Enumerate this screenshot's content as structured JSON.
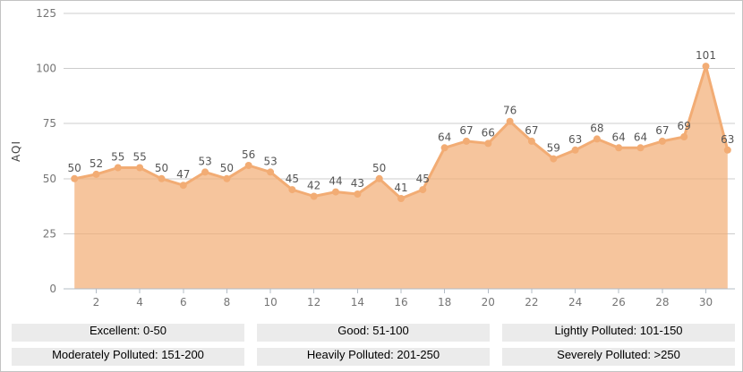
{
  "chart_data": {
    "type": "area",
    "title": "",
    "xlabel": "",
    "ylabel": "AQI",
    "x": [
      1,
      2,
      3,
      4,
      5,
      6,
      7,
      8,
      9,
      10,
      11,
      12,
      13,
      14,
      15,
      16,
      17,
      18,
      19,
      20,
      21,
      22,
      23,
      24,
      25,
      26,
      27,
      28,
      29,
      30,
      31
    ],
    "values": [
      50,
      52,
      55,
      55,
      50,
      47,
      53,
      50,
      56,
      53,
      45,
      42,
      44,
      43,
      50,
      41,
      45,
      64,
      67,
      66,
      76,
      67,
      59,
      63,
      68,
      64,
      64,
      67,
      69,
      101,
      63
    ],
    "ylim": [
      0,
      125
    ],
    "y_ticks": [
      0,
      25,
      50,
      75,
      100,
      125
    ],
    "x_tick_labels": [
      2,
      4,
      6,
      8,
      10,
      12,
      14,
      16,
      18,
      20,
      22,
      24,
      26,
      28,
      30
    ],
    "grid": true,
    "point_labels": true,
    "legend_position": "bottom",
    "colors": {
      "line": "#f2ac74",
      "area": "rgba(242,172,116,0.7)",
      "marker": "#f2ac74",
      "grid": "#cccccc",
      "axis": "#b3bcc6",
      "tick_text": "#757575",
      "point_label_text": "#555555",
      "legend_bg": "#ebebeb"
    }
  },
  "legend": {
    "items": [
      "Excellent: 0-50",
      "Good: 51-100",
      "Lightly Polluted: 101-150",
      "Moderately Polluted: 151-200",
      "Heavily Polluted: 201-250",
      "Severely Polluted: >250"
    ]
  }
}
